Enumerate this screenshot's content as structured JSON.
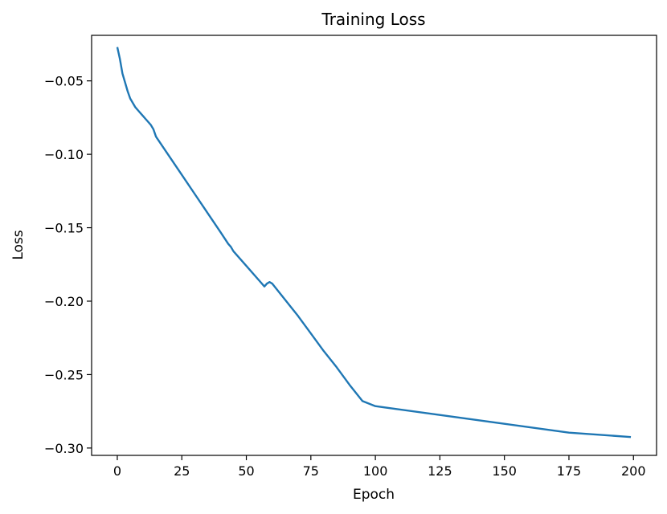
{
  "chart_data": {
    "type": "line",
    "title": "Training Loss",
    "xlabel": "Epoch",
    "ylabel": "Loss",
    "xlim": [
      -9.95,
      208.95
    ],
    "ylim": [
      -0.305,
      -0.019
    ],
    "xticks": [
      0,
      25,
      50,
      75,
      100,
      125,
      150,
      175,
      200
    ],
    "xtick_labels": [
      "0",
      "25",
      "50",
      "75",
      "100",
      "125",
      "150",
      "175",
      "200"
    ],
    "yticks": [
      -0.05,
      -0.1,
      -0.15,
      -0.2,
      -0.25,
      -0.3
    ],
    "ytick_labels": [
      "−0.05",
      "−0.10",
      "−0.15",
      "−0.20",
      "−0.25",
      "−0.30"
    ],
    "grid": false,
    "series": [
      {
        "color": "#1f77b4",
        "x": [
          0,
          1,
          2,
          3,
          4,
          5,
          6,
          7,
          8,
          9,
          10,
          11,
          12,
          13,
          14,
          15,
          20,
          25,
          30,
          35,
          40,
          43,
          44,
          45,
          50,
          55,
          57,
          58,
          59,
          60,
          65,
          70,
          75,
          80,
          85,
          90,
          95,
          100,
          125,
          150,
          175,
          199
        ],
        "y": [
          -0.027,
          -0.035,
          -0.045,
          -0.051,
          -0.057,
          -0.062,
          -0.065,
          -0.068,
          -0.07,
          -0.072,
          -0.074,
          -0.076,
          -0.078,
          -0.08,
          -0.083,
          -0.088,
          -0.101,
          -0.114,
          -0.127,
          -0.14,
          -0.153,
          -0.161,
          -0.163,
          -0.166,
          -0.176,
          -0.186,
          -0.19,
          -0.188,
          -0.187,
          -0.188,
          -0.199,
          -0.21,
          -0.222,
          -0.234,
          -0.245,
          -0.257,
          -0.268,
          -0.2715,
          -0.2775,
          -0.2835,
          -0.2895,
          -0.2925
        ]
      }
    ]
  }
}
